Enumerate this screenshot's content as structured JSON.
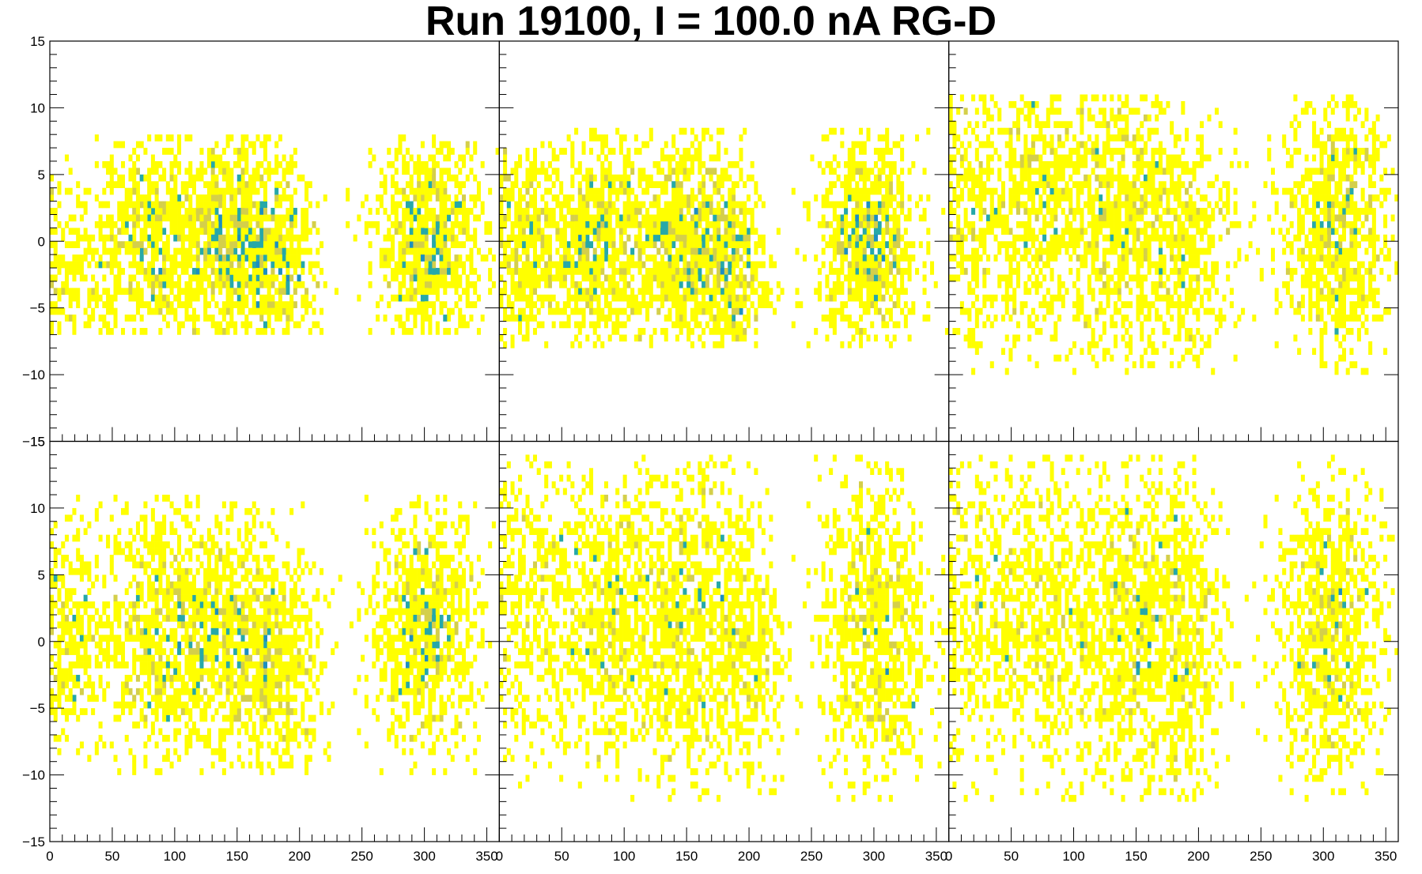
{
  "title": "Run 19100, I = 100.0 nA   RG-D",
  "colors": {
    "low": "#ffff00",
    "mid_low": "#d4cf4a",
    "mid": "#8dbd66",
    "high": "#26a8a8",
    "top": "#1d8fbf",
    "frame": "#000000"
  },
  "chart_data": {
    "type": "heatmap",
    "layout": "2x3 grid of panels",
    "x_range": [
      0,
      360
    ],
    "y_range": [
      -15,
      15
    ],
    "x_ticks": [
      0,
      50,
      100,
      150,
      200,
      250,
      300,
      350
    ],
    "y_ticks": [
      -15,
      -10,
      -5,
      0,
      5,
      10,
      15
    ],
    "x_tick_labels": [
      "0",
      "50",
      "100",
      "150",
      "200",
      "250",
      "300",
      "350"
    ],
    "y_tick_labels": [
      "−15",
      "−10",
      "−5",
      "0",
      "5",
      "10",
      "15"
    ],
    "axis_labels_on": "left column (y) and bottom row (x)",
    "bin_width_x": 3,
    "bin_width_y": 0.5,
    "panels": [
      {
        "clusters": [
          [
            0,
            25,
            -3,
            4.5,
            0.5
          ],
          [
            80,
            22,
            0,
            4,
            0.8
          ],
          [
            145,
            20,
            0,
            4,
            1.0
          ],
          [
            185,
            15,
            -2,
            4,
            0.5
          ],
          [
            305,
            22,
            0,
            4,
            1.0
          ]
        ],
        "y_core": [
          -5,
          6
        ]
      },
      {
        "clusters": [
          [
            15,
            20,
            0,
            4,
            0.6
          ],
          [
            75,
            20,
            0,
            4,
            0.8
          ],
          [
            145,
            25,
            0,
            4,
            1.0
          ],
          [
            185,
            15,
            -2,
            4,
            0.5
          ],
          [
            295,
            20,
            0,
            4,
            1.0
          ]
        ],
        "y_core": [
          -6,
          6.5
        ]
      },
      {
        "clusters": [
          [
            20,
            25,
            2,
            5.5,
            0.6
          ],
          [
            75,
            25,
            3,
            5,
            0.6
          ],
          [
            140,
            25,
            2,
            5.5,
            0.9
          ],
          [
            190,
            20,
            0,
            5,
            0.5
          ],
          [
            310,
            22,
            1,
            5,
            1.0
          ]
        ],
        "y_core": [
          -8,
          9
        ]
      },
      {
        "clusters": [
          [
            10,
            20,
            0,
            4.5,
            0.5
          ],
          [
            85,
            22,
            1,
            5,
            0.8
          ],
          [
            145,
            25,
            0,
            5,
            1.0
          ],
          [
            190,
            15,
            -2,
            4,
            0.4
          ],
          [
            300,
            22,
            1,
            4.5,
            1.0
          ]
        ],
        "y_core": [
          -8,
          9
        ]
      },
      {
        "clusters": [
          [
            20,
            25,
            3,
            6,
            0.5
          ],
          [
            85,
            25,
            2,
            6,
            0.8
          ],
          [
            150,
            25,
            1,
            6,
            1.0
          ],
          [
            200,
            15,
            0,
            6,
            0.4
          ],
          [
            300,
            22,
            1,
            6,
            1.0
          ]
        ],
        "y_core": [
          -10,
          12
        ]
      },
      {
        "clusters": [
          [
            15,
            25,
            2,
            6,
            0.5
          ],
          [
            80,
            25,
            2,
            6,
            0.7
          ],
          [
            150,
            25,
            1,
            6,
            1.0
          ],
          [
            195,
            15,
            0,
            6,
            0.4
          ],
          [
            305,
            22,
            1,
            6,
            1.0
          ]
        ],
        "y_core": [
          -10,
          12
        ]
      }
    ]
  }
}
